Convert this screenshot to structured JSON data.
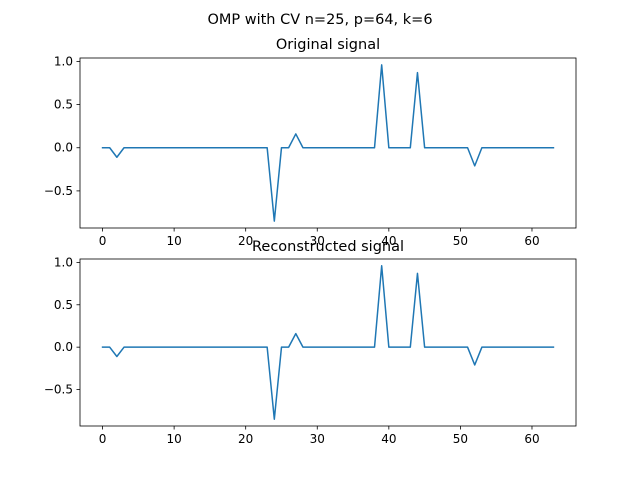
{
  "figure": {
    "suptitle": "OMP with CV n=25, p=64, k=6"
  },
  "chart_data": [
    {
      "type": "line",
      "title": "Original signal",
      "xlabel": "",
      "ylabel": "",
      "xlim": [
        -3.15,
        66.15
      ],
      "ylim": [
        -0.93,
        1.04
      ],
      "xticks": [
        0,
        10,
        20,
        30,
        40,
        50,
        60
      ],
      "yticks": [
        -0.5,
        0.0,
        0.5,
        1.0
      ],
      "xtick_labels": [
        "0",
        "10",
        "20",
        "30",
        "40",
        "50",
        "60"
      ],
      "ytick_labels": [
        "−0.5",
        "0.0",
        "0.5",
        "1.0"
      ],
      "grid": false,
      "color": "#1f77b4",
      "x": [
        0,
        1,
        2,
        3,
        4,
        5,
        6,
        7,
        8,
        9,
        10,
        11,
        12,
        13,
        14,
        15,
        16,
        17,
        18,
        19,
        20,
        21,
        22,
        23,
        24,
        25,
        26,
        27,
        28,
        29,
        30,
        31,
        32,
        33,
        34,
        35,
        36,
        37,
        38,
        39,
        40,
        41,
        42,
        43,
        44,
        45,
        46,
        47,
        48,
        49,
        50,
        51,
        52,
        53,
        54,
        55,
        56,
        57,
        58,
        59,
        60,
        61,
        62,
        63
      ],
      "y": [
        0,
        0,
        -0.11,
        0,
        0,
        0,
        0,
        0,
        0,
        0,
        0,
        0,
        0,
        0,
        0,
        0,
        0,
        0,
        0,
        0,
        0,
        0,
        0,
        0,
        -0.85,
        0,
        0,
        0.16,
        0,
        0,
        0,
        0,
        0,
        0,
        0,
        0,
        0,
        0,
        0,
        0.96,
        0,
        0,
        0,
        0,
        0.87,
        0,
        0,
        0,
        0,
        0,
        0,
        0,
        -0.21,
        0,
        0,
        0,
        0,
        0,
        0,
        0,
        0,
        0,
        0,
        0
      ]
    },
    {
      "type": "line",
      "title": "Reconstructed signal",
      "xlabel": "",
      "ylabel": "",
      "xlim": [
        -3.15,
        66.15
      ],
      "ylim": [
        -0.93,
        1.04
      ],
      "xticks": [
        0,
        10,
        20,
        30,
        40,
        50,
        60
      ],
      "yticks": [
        -0.5,
        0.0,
        0.5,
        1.0
      ],
      "xtick_labels": [
        "0",
        "10",
        "20",
        "30",
        "40",
        "50",
        "60"
      ],
      "ytick_labels": [
        "−0.5",
        "0.0",
        "0.5",
        "1.0"
      ],
      "grid": false,
      "color": "#1f77b4",
      "x": [
        0,
        1,
        2,
        3,
        4,
        5,
        6,
        7,
        8,
        9,
        10,
        11,
        12,
        13,
        14,
        15,
        16,
        17,
        18,
        19,
        20,
        21,
        22,
        23,
        24,
        25,
        26,
        27,
        28,
        29,
        30,
        31,
        32,
        33,
        34,
        35,
        36,
        37,
        38,
        39,
        40,
        41,
        42,
        43,
        44,
        45,
        46,
        47,
        48,
        49,
        50,
        51,
        52,
        53,
        54,
        55,
        56,
        57,
        58,
        59,
        60,
        61,
        62,
        63
      ],
      "y": [
        0,
        0,
        -0.11,
        0,
        0,
        0,
        0,
        0,
        0,
        0,
        0,
        0,
        0,
        0,
        0,
        0,
        0,
        0,
        0,
        0,
        0,
        0,
        0,
        0,
        -0.85,
        0,
        0,
        0.16,
        0,
        0,
        0,
        0,
        0,
        0,
        0,
        0,
        0,
        0,
        0,
        0.96,
        0,
        0,
        0,
        0,
        0.87,
        0,
        0,
        0,
        0,
        0,
        0,
        0,
        -0.21,
        0,
        0,
        0,
        0,
        0,
        0,
        0,
        0,
        0,
        0,
        0
      ]
    }
  ]
}
